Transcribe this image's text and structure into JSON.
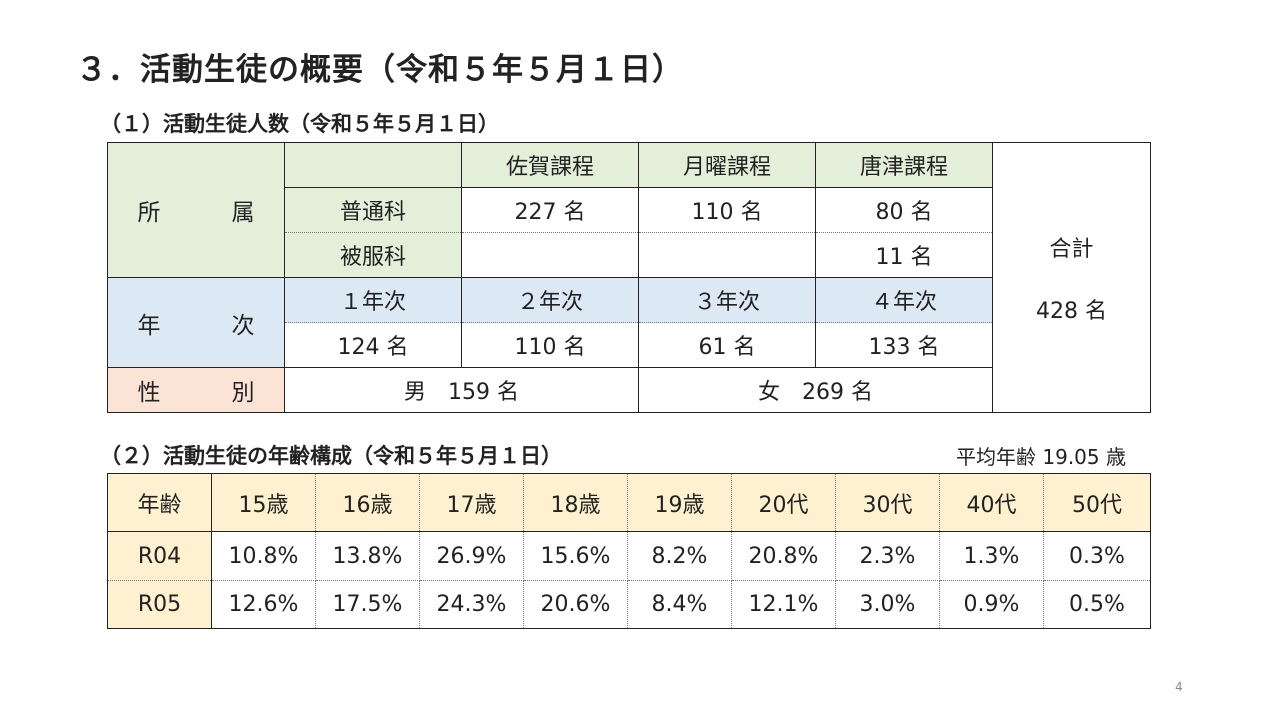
{
  "title": "３．活動生徒の概要（令和５年５月１日）",
  "section1": {
    "heading": "（１）活動生徒人数（令和５年５月１日）",
    "affiliation_label": "所　属",
    "course_headers": [
      "佐賀課程",
      "月曜課程",
      "唐津課程"
    ],
    "rows": [
      {
        "label": "普通科",
        "values": [
          "227 名",
          "110 名",
          "80 名"
        ]
      },
      {
        "label": "被服科",
        "values": [
          "",
          "",
          "11 名"
        ]
      }
    ],
    "grade_label": "年　次",
    "grade_headers": [
      "１年次",
      "２年次",
      "３年次",
      "４年次"
    ],
    "grade_values": [
      "124 名",
      "110 名",
      "61 名",
      "133 名"
    ],
    "gender_label": "性　別",
    "male": "男　159 名",
    "female": "女　269 名",
    "total_label": "合計",
    "total_value": "428 名"
  },
  "section2": {
    "heading": "（２）活動生徒の年齢構成（令和５年５月１日）",
    "average": "平均年齢 19.05 歳",
    "age_header": "年齢",
    "ages": [
      "15歳",
      "16歳",
      "17歳",
      "18歳",
      "19歳",
      "20代",
      "30代",
      "40代",
      "50代"
    ],
    "rows": [
      {
        "label": "R04",
        "values": [
          "10.8%",
          "13.8%",
          "26.9%",
          "15.6%",
          "8.2%",
          "20.8%",
          "2.3%",
          "1.3%",
          "0.3%"
        ]
      },
      {
        "label": "R05",
        "values": [
          "12.6%",
          "17.5%",
          "24.3%",
          "20.6%",
          "8.4%",
          "12.1%",
          "3.0%",
          "0.9%",
          "0.5%"
        ]
      }
    ]
  },
  "page_number": "4"
}
